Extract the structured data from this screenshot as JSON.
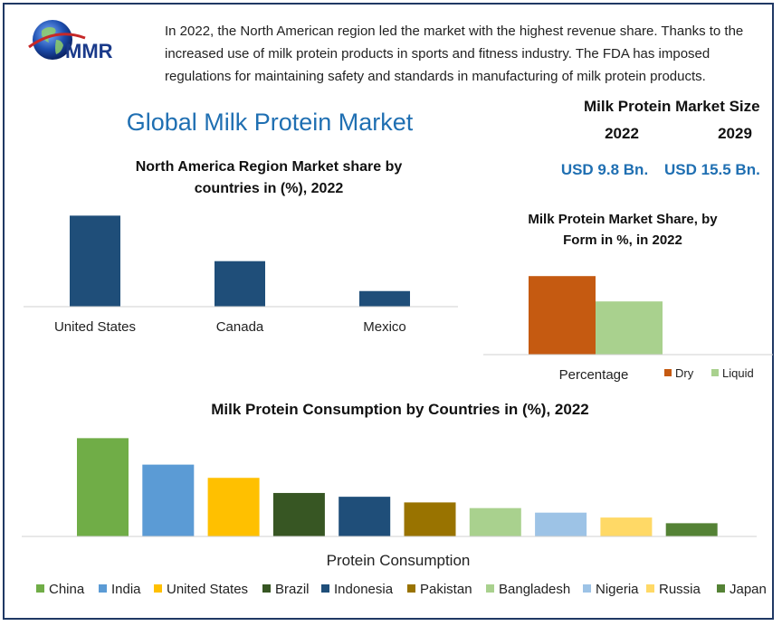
{
  "logo": {
    "text": "MMR",
    "icon": "globe-icon"
  },
  "intro_text": "In 2022, the North American region led the market with the highest revenue share. Thanks to the increased use of milk protein products in sports and fitness industry. The FDA has imposed regulations for maintaining safety and standards in manufacturing of milk protein products.",
  "main_title": "Global Milk Protein Market",
  "market_size": {
    "title": "Milk Protein Market Size",
    "years": [
      "2022",
      "2029"
    ],
    "values": [
      "USD 9.8 Bn.",
      "USD 15.5 Bn."
    ]
  },
  "chart_data": [
    {
      "type": "bar",
      "title": "North America Region Market share by countries in (%), 2022",
      "categories": [
        "United States",
        "Canada",
        "Mexico"
      ],
      "values": [
        70,
        35,
        12
      ],
      "ylim": [
        0,
        80
      ],
      "color": "#1f4e79",
      "grid": false
    },
    {
      "type": "bar",
      "title": "Milk Protein Market Share,  by Form in %, in 2022",
      "categories": [
        "Percentage"
      ],
      "series": [
        {
          "name": "Dry",
          "values": [
            62
          ],
          "color": "#c55a11"
        },
        {
          "name": "Liquid",
          "values": [
            42
          ],
          "color": "#a9d18e"
        }
      ],
      "ylim": [
        0,
        80
      ],
      "legend": "bottom-right",
      "grid": false
    },
    {
      "type": "bar",
      "title": "Milk Protein Consumption by Countries in (%), 2022",
      "xlabel": "Protein Consumption",
      "categories": [
        "Protein Consumption"
      ],
      "series": [
        {
          "name": "China",
          "values": [
            26
          ],
          "color": "#70ad47"
        },
        {
          "name": "India",
          "values": [
            19
          ],
          "color": "#5b9bd5"
        },
        {
          "name": "United States",
          "values": [
            15.5
          ],
          "color": "#ffc000"
        },
        {
          "name": "Brazil",
          "values": [
            11.5
          ],
          "color": "#375623"
        },
        {
          "name": "Indonesia",
          "values": [
            10.5
          ],
          "color": "#1f4e79"
        },
        {
          "name": "Pakistan",
          "values": [
            9
          ],
          "color": "#997300"
        },
        {
          "name": "Bangladesh",
          "values": [
            7.5
          ],
          "color": "#a9d18e"
        },
        {
          "name": "Nigeria",
          "values": [
            6.3
          ],
          "color": "#9dc3e6"
        },
        {
          "name": "Russia",
          "values": [
            5
          ],
          "color": "#ffd966"
        },
        {
          "name": "Japan",
          "values": [
            3.5
          ],
          "color": "#548235"
        }
      ],
      "ylim": [
        0,
        28
      ],
      "legend": "bottom",
      "grid": false
    }
  ]
}
